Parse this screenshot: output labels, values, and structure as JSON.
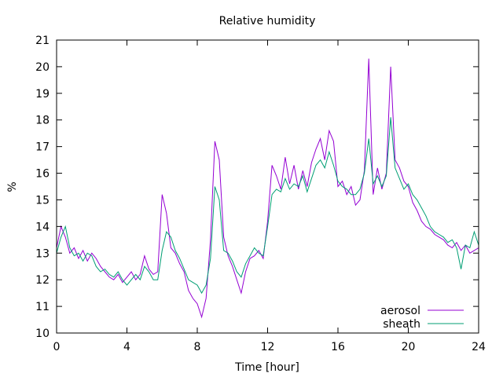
{
  "colors": {
    "aerosol": "#9400d3",
    "sheath": "#009e73",
    "axis": "#000000",
    "background": "#ffffff"
  },
  "chart_data": {
    "type": "line",
    "title": "Relative humidity",
    "xlabel": "Time [hour]",
    "ylabel": "%",
    "xlim": [
      0,
      24
    ],
    "ylim": [
      10,
      21
    ],
    "xticks": [
      "0",
      "4",
      "8",
      "12",
      "16",
      "20",
      "24"
    ],
    "yticks": [
      "10",
      "11",
      "12",
      "13",
      "14",
      "15",
      "16",
      "17",
      "18",
      "19",
      "20",
      "21"
    ],
    "grid": false,
    "legend_position": "bottom-right",
    "x": [
      0,
      0.25,
      0.5,
      0.75,
      1,
      1.25,
      1.5,
      1.75,
      2,
      2.25,
      2.5,
      2.75,
      3,
      3.25,
      3.5,
      3.75,
      4,
      4.25,
      4.5,
      4.75,
      5,
      5.25,
      5.5,
      5.75,
      6,
      6.25,
      6.5,
      6.75,
      7,
      7.25,
      7.5,
      7.75,
      8,
      8.25,
      8.5,
      8.75,
      9,
      9.25,
      9.5,
      9.75,
      10,
      10.25,
      10.5,
      10.75,
      11,
      11.25,
      11.5,
      11.75,
      12,
      12.25,
      12.5,
      12.75,
      13,
      13.25,
      13.5,
      13.75,
      14,
      14.25,
      14.5,
      14.75,
      15,
      15.25,
      15.5,
      15.75,
      16,
      16.25,
      16.5,
      16.75,
      17,
      17.25,
      17.5,
      17.75,
      18,
      18.25,
      18.5,
      18.75,
      19,
      19.25,
      19.5,
      19.75,
      20,
      20.25,
      20.5,
      20.75,
      21,
      21.25,
      21.5,
      21.75,
      22,
      22.25,
      22.5,
      22.75,
      23,
      23.25,
      23.5,
      23.75,
      24
    ],
    "series": [
      {
        "name": "aerosol",
        "values": [
          13.2,
          14.0,
          13.6,
          13.0,
          13.2,
          12.8,
          13.1,
          12.7,
          13.0,
          12.8,
          12.5,
          12.3,
          12.1,
          12.0,
          12.2,
          11.9,
          12.1,
          12.3,
          12.0,
          12.2,
          12.9,
          12.4,
          12.2,
          12.3,
          15.2,
          14.5,
          13.2,
          13.0,
          12.6,
          12.3,
          11.6,
          11.3,
          11.1,
          10.6,
          11.3,
          13.5,
          17.2,
          16.5,
          13.6,
          12.9,
          12.5,
          12.0,
          11.5,
          12.3,
          12.8,
          12.9,
          13.1,
          12.8,
          14.2,
          16.3,
          15.9,
          15.4,
          16.6,
          15.6,
          16.3,
          15.4,
          16.1,
          15.5,
          16.4,
          16.9,
          17.3,
          16.5,
          17.6,
          17.2,
          15.5,
          15.7,
          15.2,
          15.5,
          14.8,
          15.0,
          16.1,
          20.3,
          15.2,
          16.2,
          15.4,
          16.0,
          20.0,
          16.5,
          16.2,
          15.7,
          15.5,
          14.9,
          14.6,
          14.2,
          14.0,
          13.9,
          13.7,
          13.6,
          13.5,
          13.3,
          13.2,
          13.4,
          13.1,
          13.3,
          13.0,
          13.1,
          13.2
        ]
      },
      {
        "name": "sheath",
        "values": [
          13.0,
          13.6,
          14.0,
          13.2,
          12.9,
          13.0,
          12.7,
          13.0,
          12.9,
          12.5,
          12.3,
          12.4,
          12.2,
          12.1,
          12.3,
          12.0,
          11.8,
          12.0,
          12.2,
          12.0,
          12.5,
          12.3,
          12.0,
          12.0,
          13.1,
          13.8,
          13.6,
          13.1,
          12.8,
          12.4,
          12.0,
          11.9,
          11.8,
          11.5,
          11.8,
          12.8,
          15.5,
          15.0,
          13.1,
          13.0,
          12.7,
          12.3,
          12.1,
          12.6,
          12.9,
          13.2,
          13.0,
          12.9,
          14.0,
          15.2,
          15.4,
          15.3,
          15.8,
          15.4,
          15.6,
          15.5,
          15.9,
          15.3,
          15.8,
          16.3,
          16.5,
          16.2,
          16.8,
          16.3,
          15.7,
          15.5,
          15.4,
          15.2,
          15.2,
          15.4,
          16.0,
          17.3,
          15.6,
          15.9,
          15.5,
          15.9,
          18.1,
          16.2,
          15.8,
          15.4,
          15.6,
          15.2,
          15.0,
          14.7,
          14.4,
          14.0,
          13.8,
          13.7,
          13.6,
          13.4,
          13.5,
          13.2,
          12.4,
          13.3,
          13.2,
          13.8,
          13.3
        ]
      }
    ]
  }
}
